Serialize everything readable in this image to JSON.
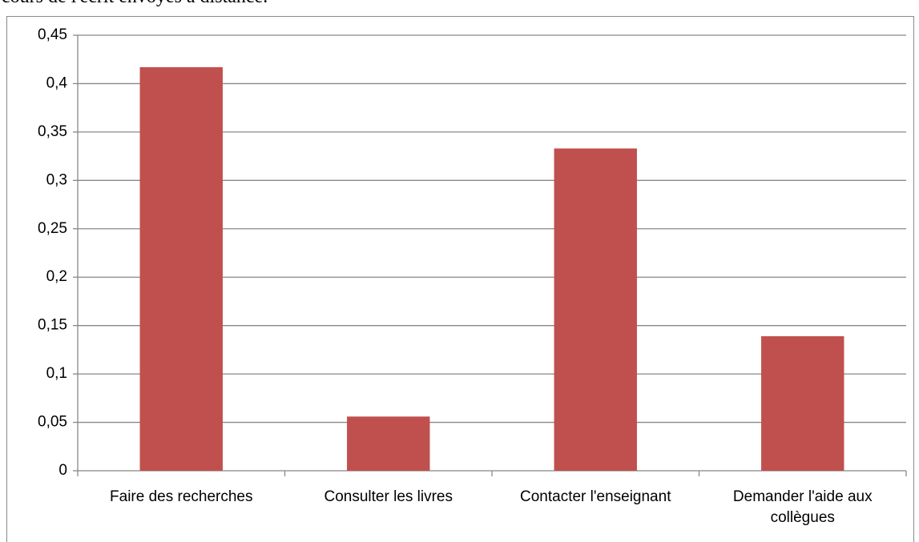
{
  "caption": "cours de l'écrit envoyés à distance.",
  "chart_data": {
    "type": "bar",
    "categories": [
      "Faire des recherches",
      "Consulter les livres",
      "Contacter l'enseignant",
      "Demander l'aide aux collègues"
    ],
    "values": [
      0.417,
      0.056,
      0.333,
      0.139
    ],
    "color": "#c0504d",
    "ylim": [
      0,
      0.45
    ],
    "yticks": [
      0,
      {
        "value": 0.05,
        "label": "0,05"
      },
      {
        "value": 0.1,
        "label": "0,1"
      },
      {
        "value": 0.15,
        "label": "0,15"
      },
      {
        "value": 0.2,
        "label": "0,2"
      },
      {
        "value": 0.25,
        "label": "0,25"
      },
      {
        "value": 0.3,
        "label": "0,3"
      },
      {
        "value": 0.35,
        "label": "0,35"
      },
      {
        "value": 0.4,
        "label": "0,4"
      },
      {
        "value": 0.45,
        "label": "0,45"
      }
    ],
    "grid": true
  }
}
